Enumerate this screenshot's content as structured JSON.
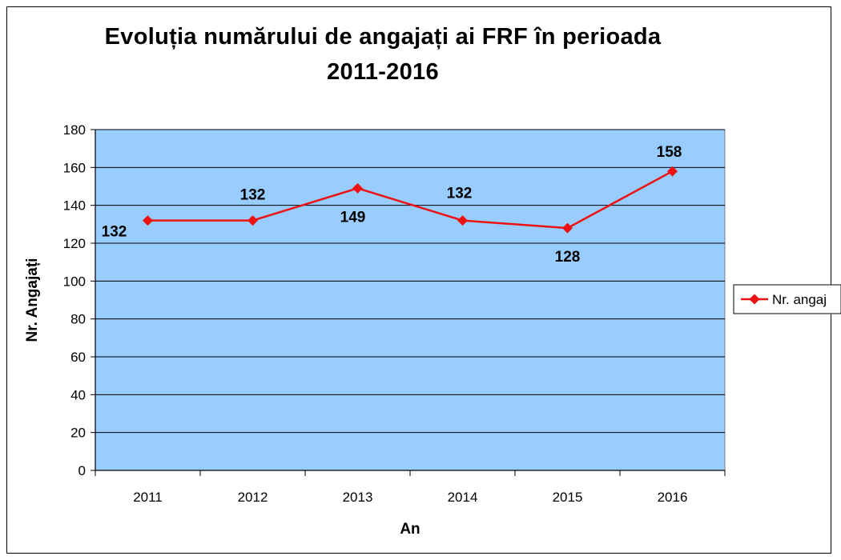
{
  "chart_data": {
    "type": "line",
    "title_line1": "Evoluția numărului de angajați ai FRF în perioada",
    "title_line2": "2011-2016",
    "xlabel": "An",
    "ylabel": "Nr. Angajați",
    "categories": [
      "2011",
      "2012",
      "2013",
      "2014",
      "2015",
      "2016"
    ],
    "series": [
      {
        "name": "Nr. angaj",
        "values": [
          132,
          132,
          149,
          132,
          128,
          158
        ],
        "color": "#ee1111"
      }
    ],
    "ylim": [
      0,
      180
    ],
    "yticks": [
      0,
      20,
      40,
      60,
      80,
      100,
      120,
      140,
      160,
      180
    ],
    "grid": true,
    "plot_background": "#99ccff",
    "legend_position": "right"
  }
}
